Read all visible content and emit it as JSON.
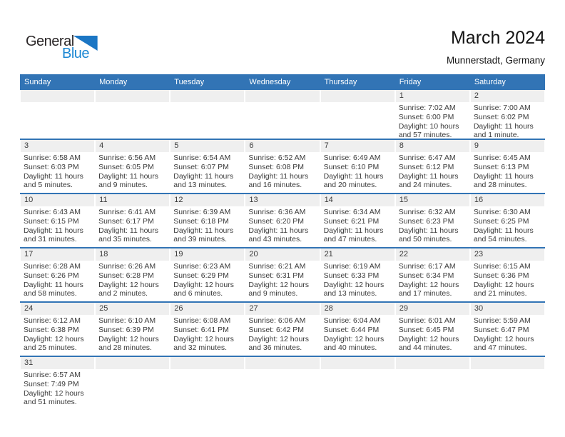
{
  "logo": {
    "text_top": "General",
    "text_bottom": "Blue"
  },
  "page_header": {
    "title": "March 2024",
    "subtitle": "Munnerstadt, Germany"
  },
  "colors": {
    "header_bg": "#3274b5",
    "row_divider": "#3274b5",
    "day_strip_bg": "#efefef",
    "logo_blue": "#1b87d3",
    "logo_triangle": "#1b76c4"
  },
  "calendar": {
    "weekday_headers": [
      "Sunday",
      "Monday",
      "Tuesday",
      "Wednesday",
      "Thursday",
      "Friday",
      "Saturday"
    ],
    "weeks": [
      [
        null,
        null,
        null,
        null,
        null,
        {
          "day": "1",
          "lines": [
            "Sunrise: 7:02 AM",
            "Sunset: 6:00 PM",
            "Daylight: 10 hours",
            "and 57 minutes."
          ]
        },
        {
          "day": "2",
          "lines": [
            "Sunrise: 7:00 AM",
            "Sunset: 6:02 PM",
            "Daylight: 11 hours",
            "and 1 minute."
          ]
        }
      ],
      [
        {
          "day": "3",
          "lines": [
            "Sunrise: 6:58 AM",
            "Sunset: 6:03 PM",
            "Daylight: 11 hours",
            "and 5 minutes."
          ]
        },
        {
          "day": "4",
          "lines": [
            "Sunrise: 6:56 AM",
            "Sunset: 6:05 PM",
            "Daylight: 11 hours",
            "and 9 minutes."
          ]
        },
        {
          "day": "5",
          "lines": [
            "Sunrise: 6:54 AM",
            "Sunset: 6:07 PM",
            "Daylight: 11 hours",
            "and 13 minutes."
          ]
        },
        {
          "day": "6",
          "lines": [
            "Sunrise: 6:52 AM",
            "Sunset: 6:08 PM",
            "Daylight: 11 hours",
            "and 16 minutes."
          ]
        },
        {
          "day": "7",
          "lines": [
            "Sunrise: 6:49 AM",
            "Sunset: 6:10 PM",
            "Daylight: 11 hours",
            "and 20 minutes."
          ]
        },
        {
          "day": "8",
          "lines": [
            "Sunrise: 6:47 AM",
            "Sunset: 6:12 PM",
            "Daylight: 11 hours",
            "and 24 minutes."
          ]
        },
        {
          "day": "9",
          "lines": [
            "Sunrise: 6:45 AM",
            "Sunset: 6:13 PM",
            "Daylight: 11 hours",
            "and 28 minutes."
          ]
        }
      ],
      [
        {
          "day": "10",
          "lines": [
            "Sunrise: 6:43 AM",
            "Sunset: 6:15 PM",
            "Daylight: 11 hours",
            "and 31 minutes."
          ]
        },
        {
          "day": "11",
          "lines": [
            "Sunrise: 6:41 AM",
            "Sunset: 6:17 PM",
            "Daylight: 11 hours",
            "and 35 minutes."
          ]
        },
        {
          "day": "12",
          "lines": [
            "Sunrise: 6:39 AM",
            "Sunset: 6:18 PM",
            "Daylight: 11 hours",
            "and 39 minutes."
          ]
        },
        {
          "day": "13",
          "lines": [
            "Sunrise: 6:36 AM",
            "Sunset: 6:20 PM",
            "Daylight: 11 hours",
            "and 43 minutes."
          ]
        },
        {
          "day": "14",
          "lines": [
            "Sunrise: 6:34 AM",
            "Sunset: 6:21 PM",
            "Daylight: 11 hours",
            "and 47 minutes."
          ]
        },
        {
          "day": "15",
          "lines": [
            "Sunrise: 6:32 AM",
            "Sunset: 6:23 PM",
            "Daylight: 11 hours",
            "and 50 minutes."
          ]
        },
        {
          "day": "16",
          "lines": [
            "Sunrise: 6:30 AM",
            "Sunset: 6:25 PM",
            "Daylight: 11 hours",
            "and 54 minutes."
          ]
        }
      ],
      [
        {
          "day": "17",
          "lines": [
            "Sunrise: 6:28 AM",
            "Sunset: 6:26 PM",
            "Daylight: 11 hours",
            "and 58 minutes."
          ]
        },
        {
          "day": "18",
          "lines": [
            "Sunrise: 6:26 AM",
            "Sunset: 6:28 PM",
            "Daylight: 12 hours",
            "and 2 minutes."
          ]
        },
        {
          "day": "19",
          "lines": [
            "Sunrise: 6:23 AM",
            "Sunset: 6:29 PM",
            "Daylight: 12 hours",
            "and 6 minutes."
          ]
        },
        {
          "day": "20",
          "lines": [
            "Sunrise: 6:21 AM",
            "Sunset: 6:31 PM",
            "Daylight: 12 hours",
            "and 9 minutes."
          ]
        },
        {
          "day": "21",
          "lines": [
            "Sunrise: 6:19 AM",
            "Sunset: 6:33 PM",
            "Daylight: 12 hours",
            "and 13 minutes."
          ]
        },
        {
          "day": "22",
          "lines": [
            "Sunrise: 6:17 AM",
            "Sunset: 6:34 PM",
            "Daylight: 12 hours",
            "and 17 minutes."
          ]
        },
        {
          "day": "23",
          "lines": [
            "Sunrise: 6:15 AM",
            "Sunset: 6:36 PM",
            "Daylight: 12 hours",
            "and 21 minutes."
          ]
        }
      ],
      [
        {
          "day": "24",
          "lines": [
            "Sunrise: 6:12 AM",
            "Sunset: 6:38 PM",
            "Daylight: 12 hours",
            "and 25 minutes."
          ]
        },
        {
          "day": "25",
          "lines": [
            "Sunrise: 6:10 AM",
            "Sunset: 6:39 PM",
            "Daylight: 12 hours",
            "and 28 minutes."
          ]
        },
        {
          "day": "26",
          "lines": [
            "Sunrise: 6:08 AM",
            "Sunset: 6:41 PM",
            "Daylight: 12 hours",
            "and 32 minutes."
          ]
        },
        {
          "day": "27",
          "lines": [
            "Sunrise: 6:06 AM",
            "Sunset: 6:42 PM",
            "Daylight: 12 hours",
            "and 36 minutes."
          ]
        },
        {
          "day": "28",
          "lines": [
            "Sunrise: 6:04 AM",
            "Sunset: 6:44 PM",
            "Daylight: 12 hours",
            "and 40 minutes."
          ]
        },
        {
          "day": "29",
          "lines": [
            "Sunrise: 6:01 AM",
            "Sunset: 6:45 PM",
            "Daylight: 12 hours",
            "and 44 minutes."
          ]
        },
        {
          "day": "30",
          "lines": [
            "Sunrise: 5:59 AM",
            "Sunset: 6:47 PM",
            "Daylight: 12 hours",
            "and 47 minutes."
          ]
        }
      ],
      [
        {
          "day": "31",
          "lines": [
            "Sunrise: 6:57 AM",
            "Sunset: 7:49 PM",
            "Daylight: 12 hours",
            "and 51 minutes."
          ]
        },
        null,
        null,
        null,
        null,
        null,
        null
      ]
    ]
  }
}
